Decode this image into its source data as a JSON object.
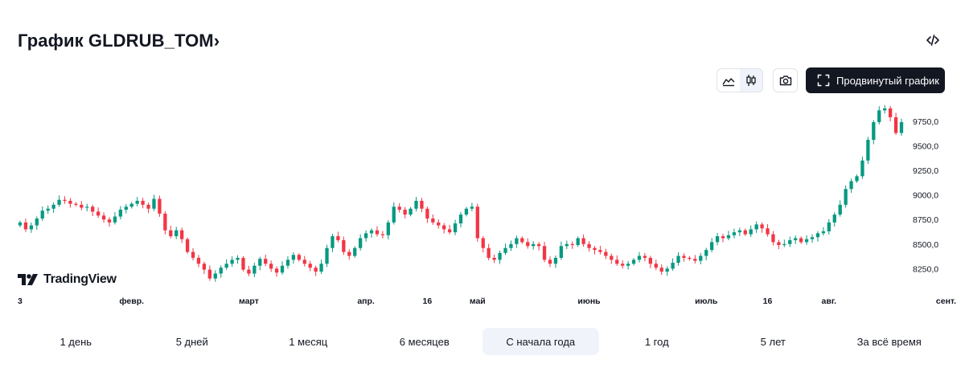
{
  "header": {
    "title": "График GLDRUB_TOM",
    "title_chevron": "›"
  },
  "toolbar": {
    "line_icon": "area-chart-icon",
    "candle_icon": "candles-icon",
    "screenshot_icon": "camera-icon",
    "advanced_label": "Продвинутый график",
    "embed_icon": "code-icon"
  },
  "branding": {
    "logo_text": "TradingView"
  },
  "chart_data": {
    "type": "candlestick",
    "ylim": [
      8000,
      9920
    ],
    "y_ticks": [
      "9750,0",
      "9500,0",
      "9250,0",
      "9000,0",
      "8750,0",
      "8500,0",
      "8250,0"
    ],
    "y_tick_values": [
      9750,
      9500,
      9250,
      9000,
      8750,
      8500,
      8250
    ],
    "x_labels": [
      "3",
      "февр.",
      "март",
      "апр.",
      "16",
      "май",
      "июнь",
      "июль",
      "16",
      "авг.",
      "сент.",
      "16"
    ],
    "x_label_index": [
      0,
      20,
      41,
      62,
      73,
      82,
      102,
      123,
      134,
      145,
      166,
      177
    ],
    "colors": {
      "up": "#089981",
      "down": "#f23645"
    },
    "closes": [
      8720,
      8650,
      8690,
      8760,
      8840,
      8860,
      8900,
      8950,
      8940,
      8910,
      8900,
      8870,
      8880,
      8830,
      8790,
      8750,
      8720,
      8780,
      8850,
      8880,
      8910,
      8940,
      8900,
      8860,
      8960,
      8810,
      8640,
      8580,
      8640,
      8550,
      8420,
      8360,
      8300,
      8240,
      8150,
      8200,
      8260,
      8300,
      8340,
      8360,
      8240,
      8200,
      8280,
      8350,
      8300,
      8250,
      8210,
      8280,
      8340,
      8390,
      8340,
      8300,
      8260,
      8220,
      8300,
      8460,
      8580,
      8540,
      8420,
      8380,
      8460,
      8560,
      8610,
      8640,
      8600,
      8590,
      8720,
      8880,
      8850,
      8800,
      8860,
      8940,
      8860,
      8760,
      8720,
      8690,
      8650,
      8620,
      8710,
      8800,
      8860,
      8880,
      8560,
      8460,
      8360,
      8340,
      8410,
      8460,
      8500,
      8560,
      8520,
      8480,
      8500,
      8480,
      8340,
      8300,
      8360,
      8480,
      8500,
      8490,
      8560,
      8500,
      8460,
      8440,
      8420,
      8380,
      8340,
      8300,
      8280,
      8300,
      8340,
      8380,
      8360,
      8300,
      8260,
      8220,
      8250,
      8310,
      8380,
      8360,
      8350,
      8330,
      8380,
      8440,
      8520,
      8580,
      8560,
      8590,
      8620,
      8640,
      8600,
      8650,
      8700,
      8660,
      8600,
      8520,
      8490,
      8500,
      8540,
      8560,
      8520,
      8550,
      8570,
      8610,
      8630,
      8720,
      8800,
      8900,
      9060,
      9140,
      9190,
      9350,
      9560,
      9740,
      9860,
      9880,
      9790,
      9630,
      9740
    ],
    "wick_spread": [
      60,
      60,
      60,
      60,
      60,
      60,
      60,
      60,
      60,
      60,
      60,
      60,
      60,
      60,
      60,
      60,
      60,
      60,
      60,
      60,
      60,
      60,
      60,
      60,
      60,
      60,
      60,
      60,
      60,
      60,
      60,
      60,
      60,
      60,
      60,
      60,
      60,
      60,
      60,
      60,
      60,
      60,
      60,
      60,
      60,
      60,
      60,
      60,
      60,
      60,
      60,
      60,
      60,
      60,
      60,
      60,
      60,
      60,
      60,
      60,
      60,
      60,
      60,
      60,
      60,
      60,
      60,
      60,
      60,
      60,
      60,
      60,
      60,
      60,
      60,
      60,
      60,
      60,
      60,
      60,
      60,
      60,
      60,
      60,
      60,
      60,
      60,
      60,
      60,
      60,
      60,
      60,
      60,
      60,
      60,
      60,
      60,
      60,
      60,
      60,
      60,
      60,
      60,
      60,
      60,
      60,
      60,
      60,
      60,
      60,
      60,
      60,
      60,
      60,
      60,
      60,
      60,
      60,
      60,
      60,
      60,
      60,
      60,
      60,
      60,
      60,
      60,
      60,
      60,
      60,
      60,
      60,
      60,
      60,
      60,
      60,
      60,
      60,
      60,
      60,
      60,
      60,
      60,
      60,
      60,
      60,
      60,
      60,
      60,
      60,
      60,
      60,
      60,
      60,
      60,
      60,
      60,
      60,
      60,
      60,
      60,
      60
    ]
  },
  "periods": [
    {
      "label": "1 день",
      "active": false
    },
    {
      "label": "5 дней",
      "active": false
    },
    {
      "label": "1 месяц",
      "active": false
    },
    {
      "label": "6 месяцев",
      "active": false
    },
    {
      "label": "С начала года",
      "active": true
    },
    {
      "label": "1 год",
      "active": false
    },
    {
      "label": "5 лет",
      "active": false
    },
    {
      "label": "За всё время",
      "active": false
    }
  ]
}
